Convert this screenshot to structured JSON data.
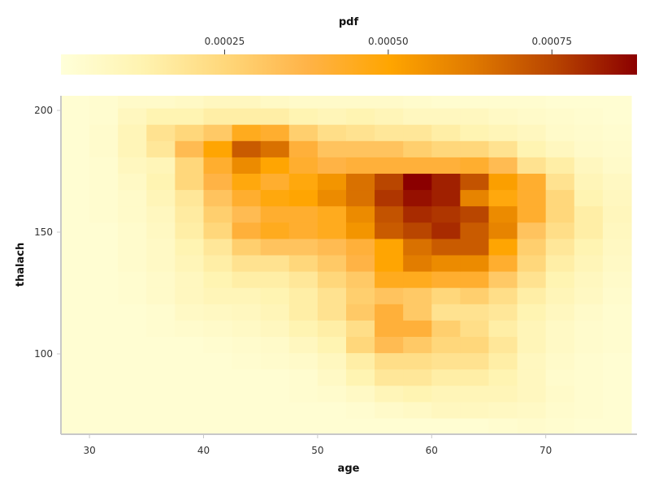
{
  "chart_data": {
    "type": "heatmap",
    "xlabel": "age",
    "ylabel": "thalach",
    "colorbar_label": "pdf",
    "xlim": [
      27.5,
      78
    ],
    "ylim": [
      67,
      206
    ],
    "x_ticks": [
      30,
      40,
      50,
      60,
      70
    ],
    "y_ticks": [
      100,
      150,
      200
    ],
    "colorbar_range": [
      0,
      0.00088
    ],
    "colorbar_ticks": [
      0.00025,
      0.0005,
      0.00075
    ],
    "colorbar_tick_labels": [
      "0.00025",
      "0.00050",
      "0.00075"
    ],
    "colorscale": [
      "#ffffd9",
      "#fff3b0",
      "#ffd77a",
      "#ffb347",
      "#ffa500",
      "#e07a00",
      "#b84400",
      "#8b0000"
    ],
    "grid": false,
    "x_bins": {
      "start": 27.5,
      "step": 2.5,
      "count": 20
    },
    "y_bins": {
      "start": 67,
      "step": 6.7,
      "count": 21
    },
    "z": [
      [
        2e-05,
        2e-05,
        2e-05,
        2e-05,
        2e-05,
        2e-05,
        2e-05,
        2e-05,
        2e-05,
        2e-05,
        2e-05,
        2e-05,
        2e-05,
        2e-05,
        2e-05,
        3e-05,
        4e-05,
        3e-05,
        2e-05,
        2e-05
      ],
      [
        2e-05,
        2e-05,
        2e-05,
        2e-05,
        2e-05,
        2e-05,
        2e-05,
        2e-05,
        2e-05,
        2e-05,
        3e-05,
        5e-05,
        6e-05,
        8e-05,
        8e-05,
        7e-05,
        6e-05,
        4e-05,
        3e-05,
        2e-05
      ],
      [
        2e-05,
        2e-05,
        2e-05,
        2e-05,
        2e-05,
        2e-05,
        2e-05,
        2e-05,
        3e-05,
        4e-05,
        6e-05,
        0.0001,
        0.00012,
        0.0001,
        0.0001,
        0.0001,
        8e-05,
        5e-05,
        3e-05,
        2e-05
      ],
      [
        2e-05,
        2e-05,
        2e-05,
        2e-05,
        2e-05,
        2e-05,
        2e-05,
        2e-05,
        3e-05,
        6e-05,
        0.00012,
        0.00018,
        0.00018,
        0.00015,
        0.00015,
        0.00012,
        8e-05,
        4e-05,
        3e-05,
        2e-05
      ],
      [
        2e-05,
        2e-05,
        2e-05,
        2e-05,
        2e-05,
        2e-05,
        3e-05,
        4e-05,
        5e-05,
        8e-05,
        0.00015,
        0.00022,
        0.00022,
        0.0002,
        0.0002,
        0.00015,
        8e-05,
        5e-05,
        3e-05,
        2e-05
      ],
      [
        2e-05,
        2e-05,
        2e-05,
        2e-05,
        2e-05,
        3e-05,
        4e-05,
        5e-05,
        8e-05,
        0.00012,
        0.00025,
        0.00035,
        0.0003,
        0.00025,
        0.00025,
        0.00018,
        0.0001,
        6e-05,
        4e-05,
        3e-05
      ],
      [
        2e-05,
        2e-05,
        2e-05,
        3e-05,
        4e-05,
        5e-05,
        6e-05,
        8e-05,
        0.00012,
        0.00015,
        0.00022,
        0.0004,
        0.0004,
        0.00028,
        0.00022,
        0.00015,
        0.0001,
        6e-05,
        4e-05,
        3e-05
      ],
      [
        2e-05,
        2e-05,
        2e-05,
        3e-05,
        6e-05,
        7e-05,
        8e-05,
        0.0001,
        0.00015,
        0.0002,
        0.0003,
        0.0004,
        0.0003,
        0.0002,
        0.0002,
        0.00018,
        0.00012,
        8e-05,
        5e-05,
        3e-05
      ],
      [
        2e-05,
        2e-05,
        3e-05,
        5e-05,
        8e-05,
        0.0001,
        0.0001,
        0.00012,
        0.00015,
        0.0002,
        0.00028,
        0.00032,
        0.0003,
        0.00025,
        0.00028,
        0.00022,
        0.00015,
        0.0001,
        7e-05,
        4e-05
      ],
      [
        2e-05,
        2e-05,
        3e-05,
        5e-05,
        8e-05,
        0.00012,
        0.00015,
        0.00015,
        0.00018,
        0.00025,
        0.0003,
        0.00045,
        0.00045,
        0.00042,
        0.00042,
        0.0003,
        0.0002,
        0.00012,
        8e-05,
        5e-05
      ],
      [
        2e-05,
        2e-05,
        4e-05,
        6e-05,
        0.0001,
        0.00015,
        0.0002,
        0.0002,
        0.00025,
        0.0003,
        0.00038,
        0.0005,
        0.00062,
        0.00058,
        0.00058,
        0.00042,
        0.00025,
        0.00015,
        0.0001,
        6e-05
      ],
      [
        2e-05,
        2e-05,
        4e-05,
        6e-05,
        0.00012,
        0.00018,
        0.00028,
        0.00032,
        0.00032,
        0.00035,
        0.0004,
        0.0005,
        0.00065,
        0.0007,
        0.0007,
        0.0005,
        0.00028,
        0.00018,
        0.00012,
        7e-05
      ],
      [
        2e-05,
        2e-05,
        4e-05,
        7e-05,
        0.00015,
        0.00025,
        0.0004,
        0.00045,
        0.00042,
        0.00045,
        0.00055,
        0.0007,
        0.00075,
        0.0008,
        0.0007,
        0.0006,
        0.00032,
        0.00022,
        0.00015,
        8e-05
      ],
      [
        2e-05,
        3e-05,
        5e-05,
        8e-05,
        0.00016,
        0.00028,
        0.00035,
        0.00042,
        0.00042,
        0.00045,
        0.00058,
        0.00072,
        0.0008,
        0.00078,
        0.00075,
        0.00058,
        0.00042,
        0.00025,
        0.00015,
        9e-05
      ],
      [
        2e-05,
        3e-05,
        5e-05,
        0.0001,
        0.00018,
        0.00032,
        0.00042,
        0.00048,
        0.0005,
        0.00058,
        0.00065,
        0.00078,
        0.00085,
        0.00082,
        0.0006,
        0.00048,
        0.00042,
        0.00025,
        0.00012,
        8e-05
      ],
      [
        2e-05,
        3e-05,
        6e-05,
        0.00012,
        0.00025,
        0.00038,
        0.00048,
        0.00042,
        0.00048,
        0.00055,
        0.00065,
        0.00075,
        0.00088,
        0.00082,
        0.00072,
        0.00052,
        0.00042,
        0.0002,
        0.0001,
        7e-05
      ],
      [
        2e-05,
        3e-05,
        8e-05,
        0.0001,
        0.00025,
        0.00042,
        0.00058,
        0.0005,
        0.00042,
        0.00038,
        0.0004,
        0.0004,
        0.0004,
        0.0004,
        0.00042,
        0.00035,
        0.0002,
        0.00015,
        8e-05,
        5e-05
      ],
      [
        2e-05,
        4e-05,
        0.0001,
        0.00018,
        0.00035,
        0.0005,
        0.0007,
        0.00065,
        0.0004,
        0.00032,
        0.00032,
        0.00032,
        0.00028,
        0.00025,
        0.00025,
        0.0002,
        0.00012,
        8e-05,
        5e-05,
        4e-05
      ],
      [
        2e-05,
        4e-05,
        0.0001,
        0.0002,
        0.00025,
        0.0003,
        0.00045,
        0.00042,
        0.00028,
        0.00022,
        0.0002,
        0.00018,
        0.00018,
        0.00015,
        0.00012,
        0.0001,
        8e-05,
        5e-05,
        4e-05,
        3e-05
      ],
      [
        2e-05,
        3e-05,
        8e-05,
        0.00012,
        0.00012,
        0.00015,
        0.00015,
        0.00015,
        0.00012,
        0.0001,
        0.00012,
        0.0001,
        8e-05,
        8e-05,
        8e-05,
        6e-05,
        5e-05,
        4e-05,
        3e-05,
        2e-05
      ],
      [
        2e-05,
        3e-05,
        5e-05,
        5e-05,
        6e-05,
        8e-05,
        8e-05,
        6e-05,
        5e-05,
        5e-05,
        5e-05,
        5e-05,
        4e-05,
        3e-05,
        3e-05,
        3e-05,
        3e-05,
        2e-05,
        2e-05,
        2e-05
      ]
    ]
  }
}
